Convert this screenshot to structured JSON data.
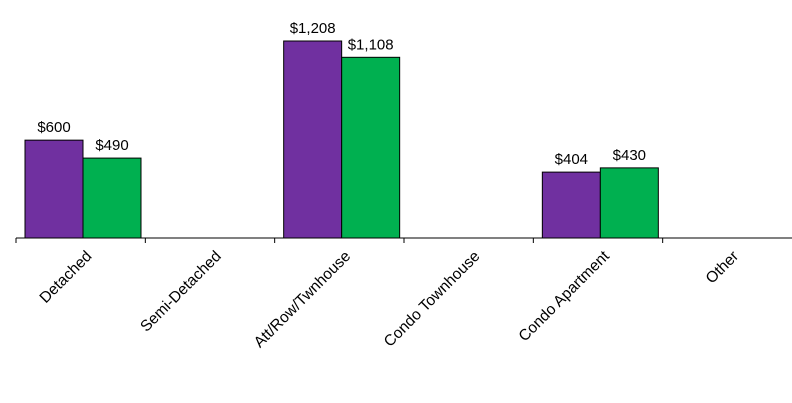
{
  "chart_data": {
    "type": "bar",
    "categories": [
      "Detached",
      "Semi-Detached",
      "Att/Row/Twnhouse",
      "Condo Townhouse",
      "Condo Apartment",
      "Other"
    ],
    "series": [
      {
        "color": "#7030a0",
        "values": [
          600,
          null,
          1208,
          null,
          404,
          null
        ],
        "labels": [
          "$600",
          "",
          "$1,208",
          "",
          "$404",
          ""
        ]
      },
      {
        "color": "#00b050",
        "values": [
          490,
          null,
          1108,
          null,
          430,
          null
        ],
        "labels": [
          "$490",
          "",
          "$1,108",
          "",
          "$430",
          ""
        ]
      }
    ],
    "ylim": [
      0,
      1300
    ],
    "grid": false,
    "title": "",
    "xlabel": "",
    "ylabel": ""
  }
}
